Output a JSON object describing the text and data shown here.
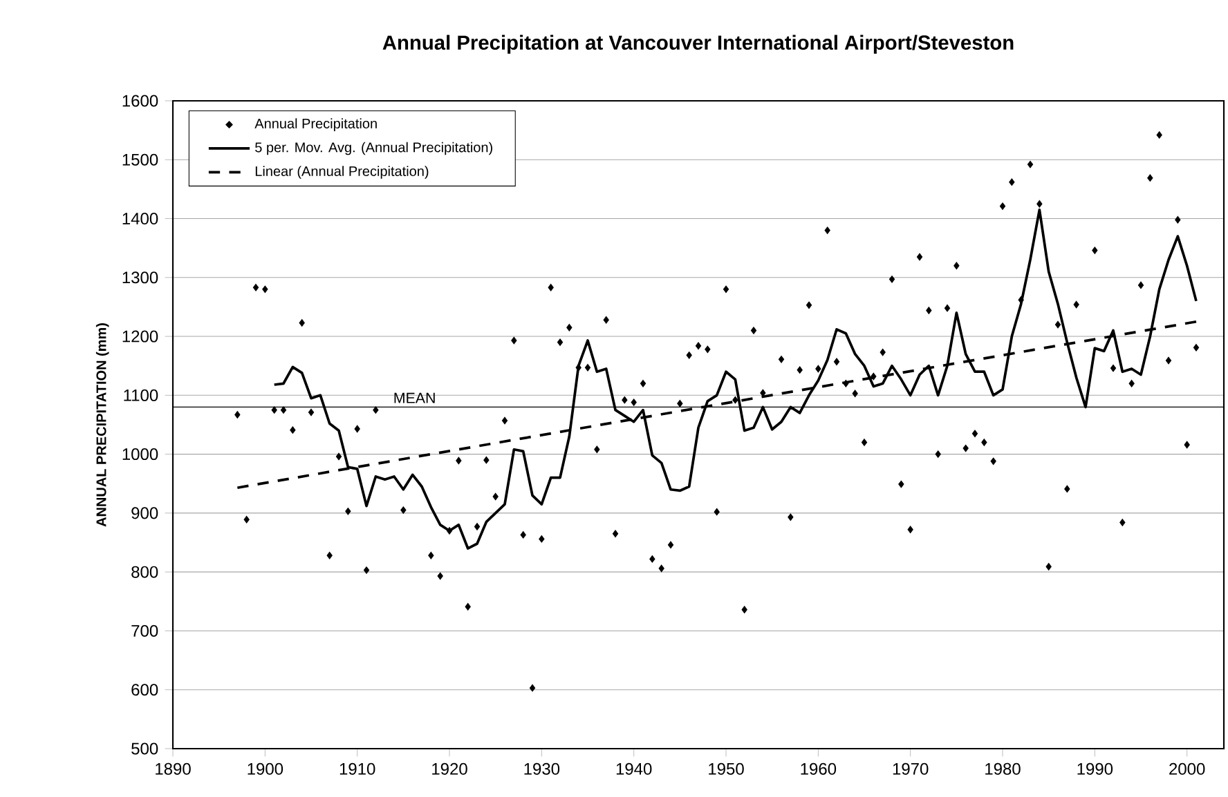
{
  "chart_data": {
    "type": "scatter",
    "title": "Annual Precipitation at Vancouver International Airport/Steveston",
    "ylabel": "ANNUAL PRECIPITATION (mm)",
    "xlim": [
      1890,
      2004
    ],
    "ylim": [
      500,
      1600
    ],
    "xticks": [
      1890,
      1900,
      1910,
      1920,
      1930,
      1940,
      1950,
      1960,
      1970,
      1980,
      1990,
      2000
    ],
    "yticks": [
      500,
      600,
      700,
      800,
      900,
      1000,
      1100,
      1200,
      1300,
      1400,
      1500,
      1600
    ],
    "grid": "y",
    "legend": "top left",
    "series": [
      {
        "name": "Annual Precipitation",
        "marker": "diamond",
        "color": "#000000",
        "x": [
          1897,
          1898,
          1899,
          1900,
          1901,
          1902,
          1903,
          1904,
          1905,
          1907,
          1908,
          1909,
          1910,
          1911,
          1912,
          1915,
          1918,
          1919,
          1920,
          1921,
          1922,
          1923,
          1924,
          1925,
          1926,
          1927,
          1928,
          1929,
          1930,
          1931,
          1932,
          1933,
          1934,
          1935,
          1936,
          1937,
          1938,
          1939,
          1940,
          1941,
          1942,
          1943,
          1944,
          1945,
          1946,
          1947,
          1948,
          1949,
          1950,
          1951,
          1952,
          1953,
          1954,
          1956,
          1957,
          1958,
          1959,
          1960,
          1961,
          1962,
          1963,
          1964,
          1965,
          1966,
          1967,
          1968,
          1969,
          1970,
          1971,
          1972,
          1973,
          1974,
          1975,
          1976,
          1977,
          1978,
          1979,
          1980,
          1981,
          1982,
          1983,
          1984,
          1985,
          1986,
          1987,
          1988,
          1990,
          1992,
          1993,
          1994,
          1995,
          1996,
          1997,
          1998,
          1999,
          2000,
          2001
        ],
        "values": [
          1067,
          889,
          1283,
          1280,
          1075,
          1075,
          1041,
          1223,
          1071,
          828,
          996,
          903,
          1043,
          803,
          1075,
          905,
          828,
          793,
          870,
          989,
          741,
          877,
          990,
          928,
          1057,
          1193,
          863,
          603,
          856,
          1283,
          1190,
          1215,
          1147,
          1147,
          1008,
          1228,
          865,
          1092,
          1088,
          1120,
          822,
          806,
          846,
          1086,
          1168,
          1184,
          1178,
          902,
          1280,
          1092,
          736,
          1210,
          1104,
          1161,
          893,
          1143,
          1253,
          1145,
          1380,
          1157,
          1120,
          1103,
          1020,
          1132,
          1173,
          1297,
          949,
          872,
          1335,
          1244,
          1000,
          1248,
          1320,
          1010,
          1035,
          1020,
          988,
          1421,
          1462,
          1262,
          1492,
          1425,
          809,
          1220,
          941,
          1254,
          1346,
          1146,
          884,
          1120,
          1287,
          1469,
          1542,
          1159,
          1398,
          1016,
          1181
        ]
      },
      {
        "name": "5 per. Mov. Avg. (Annual Precipitation)",
        "type": "line",
        "line_style": "solid",
        "color": "#000000",
        "x": [
          1901,
          1902,
          1903,
          1904,
          1905,
          1906,
          1907,
          1908,
          1909,
          1910,
          1911,
          1912,
          1913,
          1914,
          1915,
          1916,
          1917,
          1918,
          1919,
          1920,
          1921,
          1922,
          1923,
          1924,
          1925,
          1926,
          1927,
          1928,
          1929,
          1930,
          1931,
          1932,
          1933,
          1934,
          1935,
          1936,
          1937,
          1938,
          1939,
          1940,
          1941,
          1942,
          1943,
          1944,
          1945,
          1946,
          1947,
          1948,
          1949,
          1950,
          1951,
          1952,
          1953,
          1954,
          1955,
          1956,
          1957,
          1958,
          1959,
          1960,
          1961,
          1962,
          1963,
          1964,
          1965,
          1966,
          1967,
          1968,
          1969,
          1970,
          1971,
          1972,
          1973,
          1974,
          1975,
          1976,
          1977,
          1978,
          1979,
          1980,
          1981,
          1982,
          1983,
          1984,
          1985,
          1986,
          1987,
          1988,
          1989,
          1990,
          1991,
          1992,
          1993,
          1994,
          1995,
          1996,
          1997,
          1998,
          1999,
          2000,
          2001
        ],
        "values": [
          1118,
          1120,
          1148,
          1138,
          1095,
          1100,
          1052,
          1040,
          978,
          975,
          912,
          962,
          957,
          962,
          940,
          965,
          945,
          910,
          880,
          870,
          880,
          840,
          848,
          885,
          900,
          915,
          1008,
          1005,
          930,
          915,
          960,
          960,
          1030,
          1150,
          1193,
          1140,
          1145,
          1075,
          1065,
          1055,
          1075,
          998,
          985,
          940,
          938,
          945,
          1045,
          1090,
          1100,
          1140,
          1127,
          1040,
          1045,
          1080,
          1042,
          1055,
          1080,
          1070,
          1100,
          1125,
          1160,
          1212,
          1205,
          1170,
          1150,
          1115,
          1120,
          1150,
          1127,
          1100,
          1135,
          1150,
          1100,
          1150,
          1240,
          1170,
          1140,
          1140,
          1100,
          1110,
          1200,
          1255,
          1330,
          1415,
          1310,
          1255,
          1190,
          1130,
          1080,
          1180,
          1175,
          1210,
          1140,
          1145,
          1135,
          1200,
          1280,
          1330,
          1370,
          1320,
          1260
        ]
      },
      {
        "name": "Linear (Annual Precipitation)",
        "type": "line",
        "line_style": "dashed",
        "color": "#000000",
        "x": [
          1897,
          2001
        ],
        "values": [
          943,
          1225
        ]
      }
    ],
    "ref_lines": [
      {
        "axis": "y",
        "value": 1080,
        "label": "MEAN",
        "color": "#000000"
      }
    ]
  }
}
